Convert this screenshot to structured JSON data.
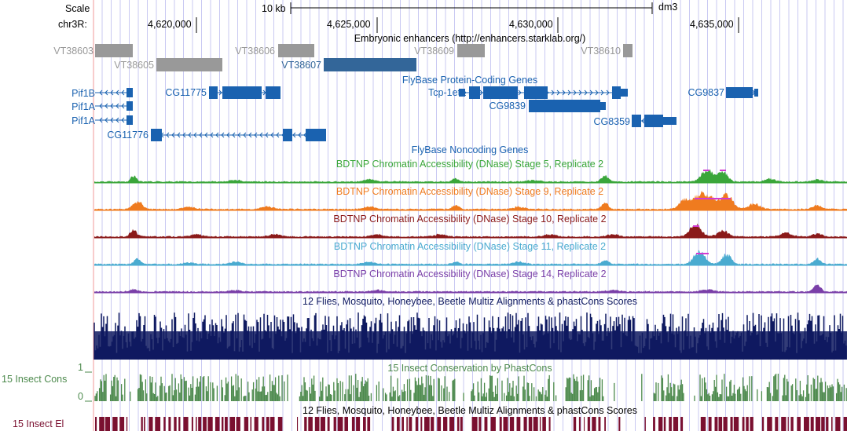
{
  "colors": {
    "gene": "#1a62b0",
    "enhancer_gray": "#999999",
    "enhancer_selected": "#336699",
    "stage5": "#3aa63a",
    "stage9": "#ef7b1f",
    "stage10": "#8b1a1a",
    "stage11": "#4aabd0",
    "stage14": "#7a3fa8",
    "multiz": "#0f1a60",
    "phastcons": "#4d8a4d",
    "elements": "#7a1030",
    "clip": "#d23ad2",
    "gridline": "#c9c9f2",
    "red_line": "#f09a9a"
  },
  "ruler": {
    "scale_label": "Scale",
    "scale_value": "10 kb",
    "assembly": "dm3",
    "chrom_label": "chr3R:",
    "ticks": [
      "4,620,000",
      "4,625,000",
      "4,630,000",
      "4,635,000"
    ]
  },
  "tracks": {
    "enhancers": {
      "title": "Embryonic enhancers (http://enhancers.starklab.org/)",
      "items": [
        {
          "name": "VT38603",
          "selected": false
        },
        {
          "name": "VT38605",
          "selected": false
        },
        {
          "name": "VT38606",
          "selected": false
        },
        {
          "name": "VT38607",
          "selected": true
        },
        {
          "name": "VT38609",
          "selected": false
        },
        {
          "name": "VT38610",
          "selected": false
        }
      ]
    },
    "flybase_coding": {
      "title": "FlyBase Protein-Coding Genes",
      "genes": [
        "Pif1B",
        "Pif1A",
        "Pif1A",
        "CG11775",
        "CG11776",
        "Tcp-1eta",
        "CG9839",
        "CG8359",
        "CG9837"
      ]
    },
    "flybase_noncoding": {
      "title": "FlyBase Noncoding Genes"
    },
    "dnase": [
      {
        "title": "BDTNP Chromatin Accessibility (DNase) Stage 5, Replicate 2"
      },
      {
        "title": "BDTNP Chromatin Accessibility (DNase) Stage 9, Replicate 2"
      },
      {
        "title": "BDTNP Chromatin Accessibility (DNase) Stage 10, Replicate 2"
      },
      {
        "title": "BDTNP Chromatin Accessibility (DNase) Stage 11, Replicate 2"
      },
      {
        "title": "BDTNP Chromatin Accessibility (DNase) Stage 14, Replicate 2"
      }
    ],
    "multiz": {
      "title": "12 Flies, Mosquito, Honeybee, Beetle Multiz Alignments & phastCons Scores"
    },
    "phastcons": {
      "title": "15 Insect Conservation by PhastCons",
      "left_label": "15 Insect Cons",
      "axis_max": "1",
      "axis_min": "0"
    },
    "elements": {
      "title": "12 Flies, Mosquito, Honeybee, Beetle Multiz Alignments & phastCons Scores",
      "left_label": "15 Insect El"
    }
  }
}
